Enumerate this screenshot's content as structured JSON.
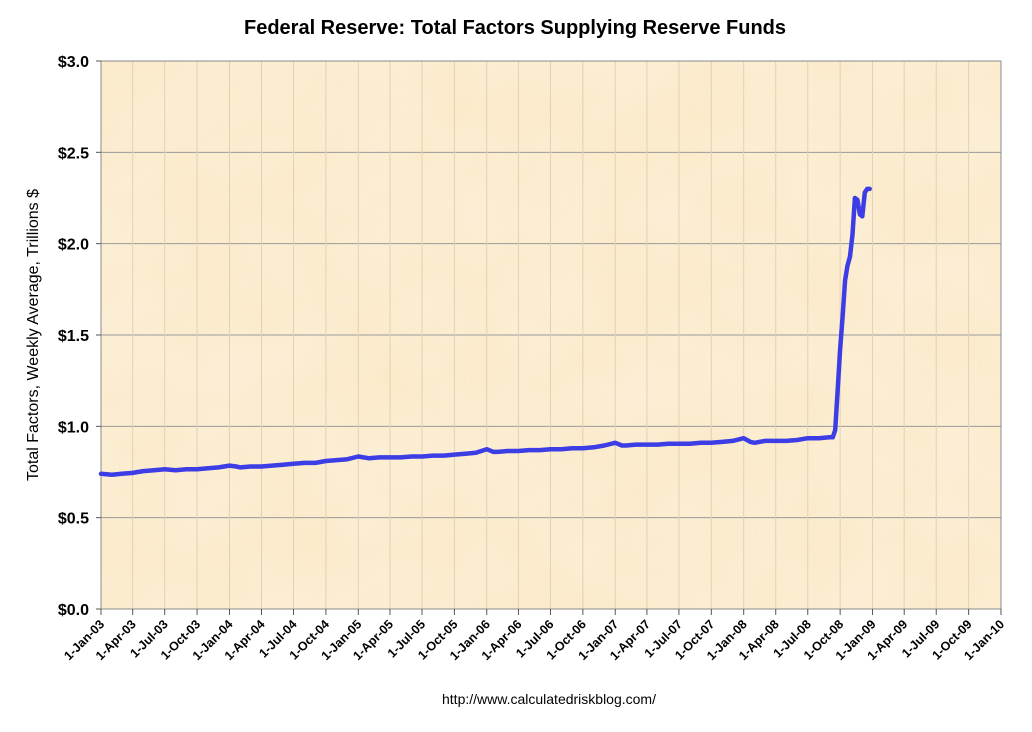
{
  "chart_data": {
    "type": "line",
    "title": "Federal Reserve: Total Factors Supplying Reserve Funds",
    "ylabel": "Total Factors, Weekly Average, Trillions $",
    "xlabel": "",
    "source": "http://www.calculatedriskblog.com/",
    "ylim": [
      0,
      3.0
    ],
    "xlim": [
      "2003-01-01",
      "2010-01-01"
    ],
    "y_ticks": [
      "$0.0",
      "$0.5",
      "$1.0",
      "$1.5",
      "$2.0",
      "$2.5",
      "$3.0"
    ],
    "y_tick_values": [
      0,
      0.5,
      1.0,
      1.5,
      2.0,
      2.5,
      3.0
    ],
    "x_ticks": [
      "1-Jan-03",
      "1-Apr-03",
      "1-Jul-03",
      "1-Oct-03",
      "1-Jan-04",
      "1-Apr-04",
      "1-Jul-04",
      "1-Oct-04",
      "1-Jan-05",
      "1-Apr-05",
      "1-Jul-05",
      "1-Oct-05",
      "1-Jan-06",
      "1-Apr-06",
      "1-Jul-06",
      "1-Oct-06",
      "1-Jan-07",
      "1-Apr-07",
      "1-Jul-07",
      "1-Oct-07",
      "1-Jan-08",
      "1-Apr-08",
      "1-Jul-08",
      "1-Oct-08",
      "1-Jan-09",
      "1-Apr-09",
      "1-Jul-09",
      "1-Oct-09",
      "1-Jan-10"
    ],
    "x_tick_dates": [
      "2003-01-01",
      "2003-04-01",
      "2003-07-01",
      "2003-10-01",
      "2004-01-01",
      "2004-04-01",
      "2004-07-01",
      "2004-10-01",
      "2005-01-01",
      "2005-04-01",
      "2005-07-01",
      "2005-10-01",
      "2006-01-01",
      "2006-04-01",
      "2006-07-01",
      "2006-10-01",
      "2007-01-01",
      "2007-04-01",
      "2007-07-01",
      "2007-10-01",
      "2008-01-01",
      "2008-04-01",
      "2008-07-01",
      "2008-10-01",
      "2009-01-01",
      "2009-04-01",
      "2009-07-01",
      "2009-10-01",
      "2010-01-01"
    ],
    "grid": true,
    "series": [
      {
        "color": "#3d3de6",
        "points": [
          [
            "2003-01-01",
            0.74
          ],
          [
            "2003-02-01",
            0.735
          ],
          [
            "2003-03-01",
            0.74
          ],
          [
            "2003-04-01",
            0.745
          ],
          [
            "2003-05-01",
            0.755
          ],
          [
            "2003-06-01",
            0.76
          ],
          [
            "2003-07-01",
            0.765
          ],
          [
            "2003-08-01",
            0.76
          ],
          [
            "2003-09-01",
            0.765
          ],
          [
            "2003-10-01",
            0.765
          ],
          [
            "2003-11-01",
            0.77
          ],
          [
            "2003-12-01",
            0.775
          ],
          [
            "2004-01-01",
            0.785
          ],
          [
            "2004-01-20",
            0.78
          ],
          [
            "2004-02-01",
            0.775
          ],
          [
            "2004-03-01",
            0.78
          ],
          [
            "2004-04-01",
            0.78
          ],
          [
            "2004-05-01",
            0.785
          ],
          [
            "2004-06-01",
            0.79
          ],
          [
            "2004-07-01",
            0.795
          ],
          [
            "2004-08-01",
            0.8
          ],
          [
            "2004-09-01",
            0.8
          ],
          [
            "2004-10-01",
            0.81
          ],
          [
            "2004-11-01",
            0.815
          ],
          [
            "2004-12-01",
            0.82
          ],
          [
            "2005-01-01",
            0.835
          ],
          [
            "2005-02-01",
            0.825
          ],
          [
            "2005-03-01",
            0.83
          ],
          [
            "2005-04-01",
            0.83
          ],
          [
            "2005-05-01",
            0.83
          ],
          [
            "2005-06-01",
            0.835
          ],
          [
            "2005-07-01",
            0.835
          ],
          [
            "2005-08-01",
            0.84
          ],
          [
            "2005-09-01",
            0.84
          ],
          [
            "2005-10-01",
            0.845
          ],
          [
            "2005-11-01",
            0.85
          ],
          [
            "2005-12-01",
            0.855
          ],
          [
            "2006-01-01",
            0.875
          ],
          [
            "2006-01-20",
            0.86
          ],
          [
            "2006-02-01",
            0.86
          ],
          [
            "2006-03-01",
            0.865
          ],
          [
            "2006-04-01",
            0.865
          ],
          [
            "2006-05-01",
            0.87
          ],
          [
            "2006-06-01",
            0.87
          ],
          [
            "2006-07-01",
            0.875
          ],
          [
            "2006-08-01",
            0.875
          ],
          [
            "2006-09-01",
            0.88
          ],
          [
            "2006-10-01",
            0.88
          ],
          [
            "2006-11-01",
            0.885
          ],
          [
            "2006-12-01",
            0.895
          ],
          [
            "2007-01-01",
            0.91
          ],
          [
            "2007-01-20",
            0.895
          ],
          [
            "2007-02-01",
            0.895
          ],
          [
            "2007-03-01",
            0.9
          ],
          [
            "2007-04-01",
            0.9
          ],
          [
            "2007-05-01",
            0.9
          ],
          [
            "2007-06-01",
            0.905
          ],
          [
            "2007-07-01",
            0.905
          ],
          [
            "2007-08-01",
            0.905
          ],
          [
            "2007-09-01",
            0.91
          ],
          [
            "2007-10-01",
            0.91
          ],
          [
            "2007-11-01",
            0.915
          ],
          [
            "2007-12-01",
            0.92
          ],
          [
            "2008-01-01",
            0.935
          ],
          [
            "2008-01-20",
            0.915
          ],
          [
            "2008-02-01",
            0.91
          ],
          [
            "2008-03-01",
            0.92
          ],
          [
            "2008-04-01",
            0.92
          ],
          [
            "2008-05-01",
            0.92
          ],
          [
            "2008-06-01",
            0.925
          ],
          [
            "2008-07-01",
            0.935
          ],
          [
            "2008-08-01",
            0.935
          ],
          [
            "2008-09-01",
            0.94
          ],
          [
            "2008-09-10",
            0.94
          ],
          [
            "2008-09-17",
            0.98
          ],
          [
            "2008-09-24",
            1.2
          ],
          [
            "2008-10-01",
            1.42
          ],
          [
            "2008-10-08",
            1.6
          ],
          [
            "2008-10-15",
            1.8
          ],
          [
            "2008-10-22",
            1.88
          ],
          [
            "2008-10-29",
            1.93
          ],
          [
            "2008-11-05",
            2.05
          ],
          [
            "2008-11-12",
            2.25
          ],
          [
            "2008-11-19",
            2.24
          ],
          [
            "2008-11-26",
            2.16
          ],
          [
            "2008-12-03",
            2.15
          ],
          [
            "2008-12-10",
            2.28
          ],
          [
            "2008-12-17",
            2.3
          ],
          [
            "2008-12-24",
            2.3
          ]
        ]
      }
    ]
  }
}
